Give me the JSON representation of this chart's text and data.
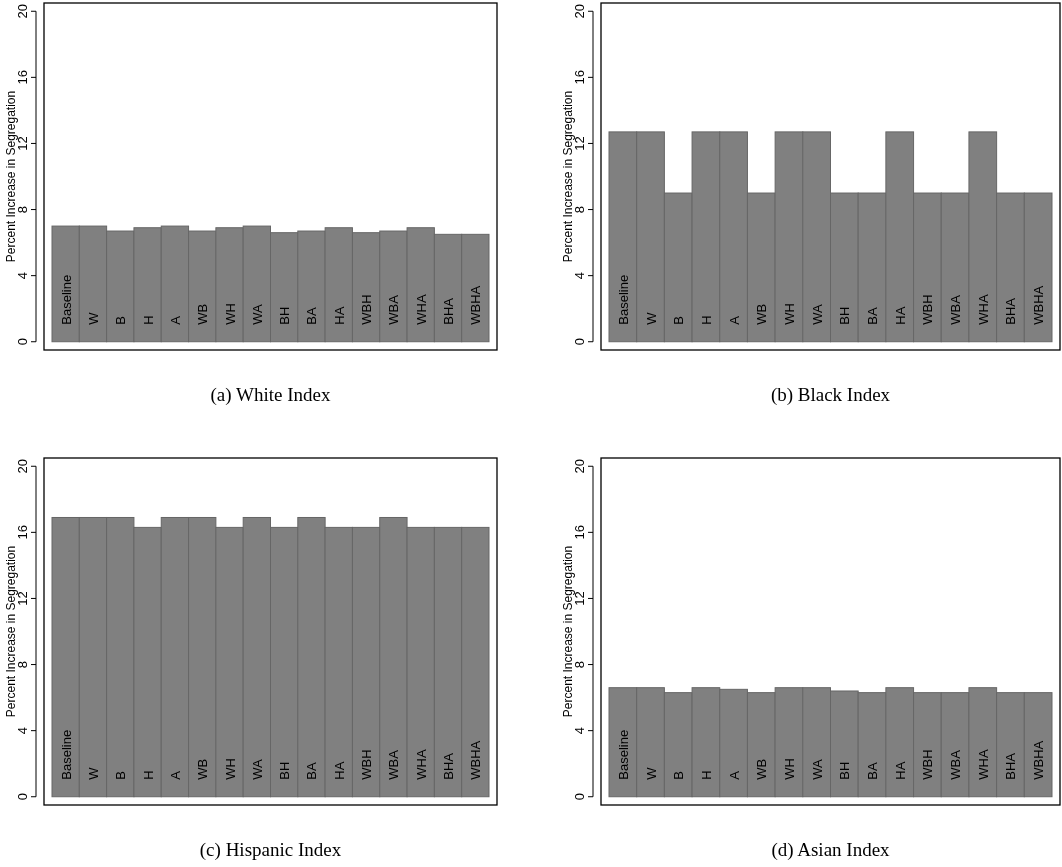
{
  "chart_data": [
    {
      "type": "bar",
      "title": "(a) White Index",
      "ylabel": "Percent Increase in Segregation",
      "categories": [
        "Baseline",
        "W",
        "B",
        "H",
        "A",
        "WB",
        "WH",
        "WA",
        "BH",
        "BA",
        "HA",
        "WBH",
        "WBA",
        "WHA",
        "BHA",
        "WBHA"
      ],
      "values": [
        7.0,
        7.0,
        6.7,
        6.9,
        7.0,
        6.7,
        6.9,
        7.0,
        6.6,
        6.7,
        6.9,
        6.6,
        6.7,
        6.9,
        6.5,
        6.5
      ],
      "color": "#808080",
      "ylim": [
        -0.5,
        20.5
      ],
      "yticks": [
        0,
        4,
        8,
        12,
        16,
        20
      ],
      "grid": false
    },
    {
      "type": "bar",
      "title": "(b) Black Index",
      "ylabel": "Percent Increase in Segregation",
      "categories": [
        "Baseline",
        "W",
        "B",
        "H",
        "A",
        "WB",
        "WH",
        "WA",
        "BH",
        "BA",
        "HA",
        "WBH",
        "WBA",
        "WHA",
        "BHA",
        "WBHA"
      ],
      "values": [
        12.7,
        12.7,
        9.0,
        12.7,
        12.7,
        9.0,
        12.7,
        12.7,
        9.0,
        9.0,
        12.7,
        9.0,
        9.0,
        12.7,
        9.0,
        9.0
      ],
      "color": "#808080",
      "ylim": [
        -0.5,
        20.5
      ],
      "yticks": [
        0,
        4,
        8,
        12,
        16,
        20
      ],
      "grid": false
    },
    {
      "type": "bar",
      "title": "(c) Hispanic Index",
      "ylabel": "Percent Increase in Segregation",
      "categories": [
        "Baseline",
        "W",
        "B",
        "H",
        "A",
        "WB",
        "WH",
        "WA",
        "BH",
        "BA",
        "HA",
        "WBH",
        "WBA",
        "WHA",
        "BHA",
        "WBHA"
      ],
      "values": [
        16.9,
        16.9,
        16.9,
        16.3,
        16.9,
        16.9,
        16.3,
        16.9,
        16.3,
        16.9,
        16.3,
        16.3,
        16.9,
        16.3,
        16.3,
        16.3
      ],
      "color": "#808080",
      "ylim": [
        -0.5,
        20.5
      ],
      "yticks": [
        0,
        4,
        8,
        12,
        16,
        20
      ],
      "grid": false
    },
    {
      "type": "bar",
      "title": "(d) Asian Index",
      "ylabel": "Percent Increase in Segregation",
      "categories": [
        "Baseline",
        "W",
        "B",
        "H",
        "A",
        "WB",
        "WH",
        "WA",
        "BH",
        "BA",
        "HA",
        "WBH",
        "WBA",
        "WHA",
        "BHA",
        "WBHA"
      ],
      "values": [
        6.6,
        6.6,
        6.3,
        6.6,
        6.5,
        6.3,
        6.6,
        6.6,
        6.4,
        6.3,
        6.6,
        6.3,
        6.3,
        6.6,
        6.3,
        6.3
      ],
      "color": "#808080",
      "ylim": [
        -0.5,
        20.5
      ],
      "yticks": [
        0,
        4,
        8,
        12,
        16,
        20
      ],
      "grid": false
    }
  ]
}
